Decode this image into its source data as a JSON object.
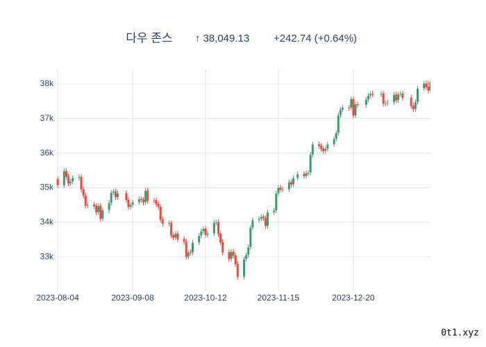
{
  "header": {
    "title": "다우 존스",
    "price_label": "↑ 38,049.13",
    "change_label": "+242.74 (+0.64%)"
  },
  "watermark": "0t1.xyz",
  "chart_data": {
    "type": "candlestick",
    "x": [
      "2023-08-04",
      "2023-08-07",
      "2023-08-08",
      "2023-08-09",
      "2023-08-10",
      "2023-08-11",
      "2023-08-14",
      "2023-08-15",
      "2023-08-16",
      "2023-08-17",
      "2023-08-18",
      "2023-08-21",
      "2023-08-22",
      "2023-08-23",
      "2023-08-24",
      "2023-08-25",
      "2023-08-28",
      "2023-08-29",
      "2023-08-30",
      "2023-08-31",
      "2023-09-01",
      "2023-09-05",
      "2023-09-06",
      "2023-09-07",
      "2023-09-08",
      "2023-09-11",
      "2023-09-12",
      "2023-09-13",
      "2023-09-14",
      "2023-09-15",
      "2023-09-18",
      "2023-09-19",
      "2023-09-20",
      "2023-09-21",
      "2023-09-22",
      "2023-09-25",
      "2023-09-26",
      "2023-09-27",
      "2023-09-28",
      "2023-09-29",
      "2023-10-02",
      "2023-10-03",
      "2023-10-04",
      "2023-10-05",
      "2023-10-06",
      "2023-10-09",
      "2023-10-10",
      "2023-10-11",
      "2023-10-12",
      "2023-10-13",
      "2023-10-16",
      "2023-10-17",
      "2023-10-18",
      "2023-10-19",
      "2023-10-20",
      "2023-10-23",
      "2023-10-24",
      "2023-10-25",
      "2023-10-26",
      "2023-10-27",
      "2023-10-30",
      "2023-10-31",
      "2023-11-01",
      "2023-11-02",
      "2023-11-03",
      "2023-11-06",
      "2023-11-07",
      "2023-11-08",
      "2023-11-09",
      "2023-11-10",
      "2023-11-13",
      "2023-11-14",
      "2023-11-15",
      "2023-11-16",
      "2023-11-17",
      "2023-11-20",
      "2023-11-21",
      "2023-11-22",
      "2023-11-24",
      "2023-11-27",
      "2023-11-28",
      "2023-11-29",
      "2023-11-30",
      "2023-12-01",
      "2023-12-04",
      "2023-12-05",
      "2023-12-06",
      "2023-12-07",
      "2023-12-08",
      "2023-12-11",
      "2023-12-12",
      "2023-12-13",
      "2023-12-14",
      "2023-12-15",
      "2023-12-18",
      "2023-12-19",
      "2023-12-20",
      "2023-12-21",
      "2023-12-22",
      "2023-12-26",
      "2023-12-27",
      "2023-12-28",
      "2023-12-29",
      "2024-01-02",
      "2024-01-03",
      "2024-01-04",
      "2024-01-05",
      "2024-01-08",
      "2024-01-09",
      "2024-01-10",
      "2024-01-11",
      "2024-01-12",
      "2024-01-16",
      "2024-01-17",
      "2024-01-18",
      "2024-01-19",
      "2024-01-22",
      "2024-01-23",
      "2024-01-24",
      "2024-01-25"
    ],
    "open": [
      35250,
      35076,
      35483,
      35324,
      35133,
      35186,
      35291,
      35317,
      34956,
      34775,
      34484,
      34510,
      34473,
      34298,
      34482,
      34109,
      34356,
      34569,
      34862,
      34900,
      34732,
      34847,
      34651,
      34453,
      34510,
      34586,
      34673,
      34656,
      34585,
      34917,
      34628,
      34635,
      34528,
      34451,
      34080,
      33974,
      33976,
      33629,
      33561,
      33677,
      33518,
      33443,
      33012,
      33139,
      33130,
      33418,
      33615,
      33749,
      33815,
      33642,
      33680,
      33995,
      34008,
      33676,
      33425,
      33137,
      32947,
      33151,
      33046,
      32795,
      32428,
      32939,
      33063,
      33285,
      33850,
      34071,
      34106,
      34163,
      34122,
      33902,
      34293,
      34347,
      34838,
      35002,
      34956,
      34957,
      35161,
      35098,
      35283,
      35400,
      35344,
      35427,
      35440,
      35961,
      36256,
      36214,
      36135,
      36065,
      36127,
      36258,
      36414,
      36588,
      37100,
      37258,
      37316,
      37317,
      37568,
      37093,
      37415,
      37396,
      37555,
      37667,
      37720,
      37700,
      37725,
      37441,
      37450,
      37476,
      37693,
      37536,
      37706,
      37721,
      37603,
      37371,
      37277,
      37479,
      37874,
      38012,
      37916,
      37816
    ],
    "high": [
      35330,
      35553,
      35563,
      35404,
      35256,
      35361,
      35387,
      35397,
      35036,
      34855,
      34580,
      34590,
      34553,
      34552,
      34562,
      34426,
      34639,
      34932,
      34970,
      34980,
      34917,
      34927,
      34731,
      34580,
      34656,
      34743,
      34753,
      34736,
      34987,
      34997,
      34708,
      34715,
      34608,
      34531,
      34160,
      34054,
      34056,
      33709,
      33747,
      33757,
      33598,
      33523,
      33209,
      33219,
      33488,
      33685,
      33819,
      33885,
      33895,
      33750,
      34065,
      34078,
      34088,
      33756,
      33505,
      33217,
      33221,
      33231,
      33126,
      32875,
      33009,
      33133,
      33355,
      33920,
      34141,
      34176,
      34233,
      34243,
      34202,
      34363,
      34417,
      34908,
      35072,
      35082,
      35036,
      35231,
      35241,
      35353,
      35470,
      35480,
      35497,
      35510,
      36031,
      36326,
      36336,
      36294,
      36215,
      36197,
      36328,
      36484,
      36658,
      37170,
      37328,
      37386,
      37396,
      37638,
      37648,
      37485,
      37495,
      37625,
      37737,
      37790,
      37800,
      37795,
      37805,
      37521,
      37546,
      37763,
      37773,
      37776,
      37791,
      37801,
      37683,
      37451,
      37549,
      37944,
      38082,
      38092,
      38096,
      38129
    ],
    "low": [
      34986,
      34996,
      35234,
      35043,
      35053,
      35106,
      35211,
      34866,
      34685,
      34394,
      34404,
      34383,
      34208,
      34218,
      34019,
      34029,
      34276,
      34489,
      34782,
      34642,
      34652,
      34561,
      34363,
      34373,
      34430,
      34506,
      34566,
      34495,
      34505,
      34538,
      34545,
      34438,
      34361,
      33990,
      33884,
      33886,
      33539,
      33471,
      33481,
      33428,
      33353,
      32922,
      32932,
      33040,
      33050,
      33338,
      33535,
      33669,
      33552,
      33562,
      33600,
      33915,
      33586,
      33335,
      33047,
      32857,
      32867,
      32956,
      32705,
      32338,
      32348,
      32859,
      32983,
      33205,
      33770,
      33991,
      34026,
      34032,
      33812,
      33822,
      34213,
      34267,
      34758,
      34866,
      34867,
      34877,
      35008,
      35018,
      35203,
      35254,
      35264,
      35347,
      35360,
      35881,
      36124,
      36045,
      35975,
      35985,
      36047,
      36178,
      36334,
      36508,
      37020,
      37178,
      37227,
      37237,
      37003,
      37013,
      37306,
      37316,
      37475,
      37587,
      37610,
      37620,
      37351,
      37361,
      37370,
      37396,
      37446,
      37456,
      37626,
      37513,
      37281,
      37187,
      37197,
      37399,
      37794,
      37826,
      37726,
      37736
    ],
    "close": [
      35066,
      35473,
      35314,
      35123,
      35176,
      35281,
      35307,
      34946,
      34765,
      34474,
      34500,
      34463,
      34288,
      34472,
      34099,
      34346,
      34559,
      34852,
      34890,
      34722,
      34837,
      34641,
      34443,
      34500,
      34576,
      34663,
      34646,
      34575,
      34907,
      34618,
      34625,
      34518,
      34441,
      34070,
      33964,
      33966,
      33619,
      33551,
      33667,
      33508,
      33433,
      33002,
      33129,
      33120,
      33408,
      33605,
      33739,
      33805,
      33632,
      33670,
      33985,
      33998,
      33666,
      33415,
      33127,
      32937,
      33141,
      33036,
      32785,
      32418,
      32929,
      33053,
      33275,
      33840,
      34061,
      34096,
      34153,
      34112,
      33892,
      34283,
      34337,
      34828,
      34992,
      34946,
      34947,
      35151,
      35088,
      35273,
      35390,
      35334,
      35417,
      35430,
      35951,
      36246,
      36204,
      36125,
      36055,
      36117,
      36248,
      36404,
      36578,
      37090,
      37248,
      37306,
      37307,
      37558,
      37083,
      37405,
      37386,
      37545,
      37657,
      37710,
      37690,
      37715,
      37431,
      37440,
      37466,
      37683,
      37526,
      37696,
      37711,
      37593,
      37361,
      37267,
      37469,
      37864,
      38002,
      37906,
      37806,
      38049
    ],
    "increasing_color": "#3d9970",
    "decreasing_color": "#ff4136",
    "xlim": [
      "2023-08-03",
      "2024-01-25"
    ],
    "xticks": [
      "2023-08-04",
      "2023-09-08",
      "2023-10-12",
      "2023-11-15",
      "2023-12-20"
    ],
    "ylim": [
      32000,
      38420
    ],
    "yticks": [
      {
        "value": 33000,
        "label": "33k"
      },
      {
        "value": 34000,
        "label": "34k"
      },
      {
        "value": 35000,
        "label": "35k"
      },
      {
        "value": 36000,
        "label": "36k"
      },
      {
        "value": 37000,
        "label": "37k"
      },
      {
        "value": 38000,
        "label": "38k"
      }
    ],
    "grid": true
  }
}
